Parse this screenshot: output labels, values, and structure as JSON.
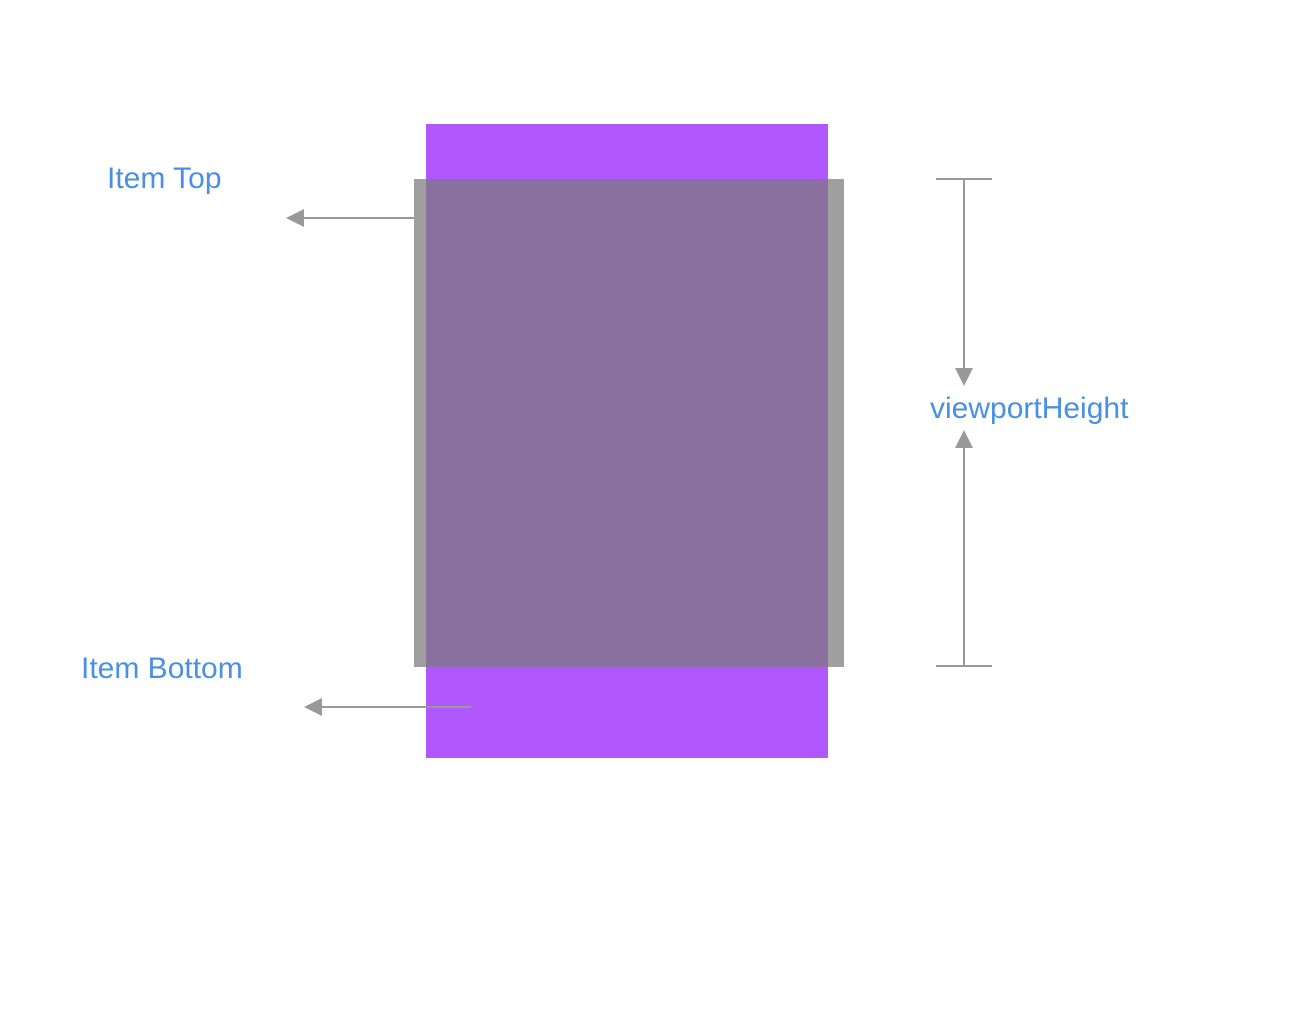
{
  "labels": {
    "item_top": "Item Top",
    "item_bottom": "Item Bottom",
    "viewport_height": "viewportHeight"
  },
  "colors": {
    "label_text": "#4a90e2",
    "item_fill": "#b057ff",
    "viewport_fill": "#8e8e8e",
    "arrow": "#999999",
    "background": "#ffffff"
  }
}
